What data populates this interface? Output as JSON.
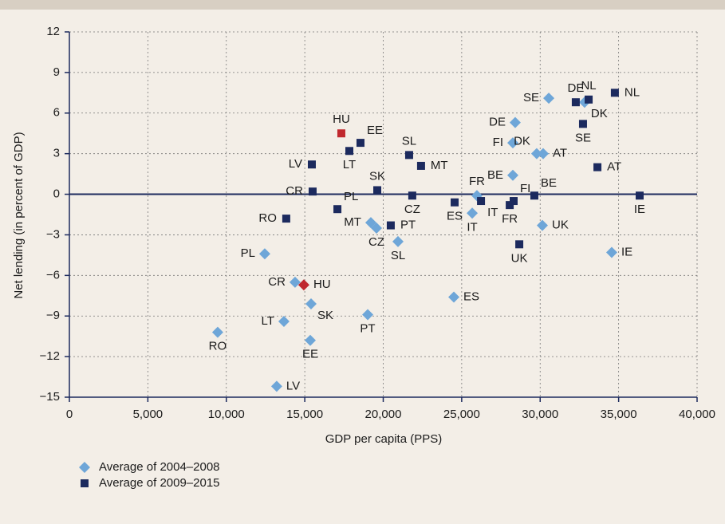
{
  "chart_data": {
    "type": "scatter",
    "xlabel": "GDP per capita (PPS)",
    "ylabel": "Net lending (in percent of GDP)",
    "xlim": [
      0,
      40000
    ],
    "xticks": [
      0,
      {
        "value": 5000,
        "label": "5,000"
      },
      {
        "value": 10000,
        "label": "10,000"
      },
      {
        "value": 15000,
        "label": "15,000"
      },
      {
        "value": 20000,
        "label": "20,000"
      },
      {
        "value": 25000,
        "label": "25,000"
      },
      {
        "value": 30000,
        "label": "30,000"
      },
      {
        "value": 35000,
        "label": "35,000"
      },
      {
        "value": 40000,
        "label": "40,000"
      }
    ],
    "ylim": [
      -15,
      12
    ],
    "yticks": [
      {
        "value": -15,
        "label": "−15"
      },
      {
        "value": -12,
        "label": "−12"
      },
      {
        "value": -9,
        "label": "−9"
      },
      {
        "value": -6,
        "label": "−6"
      },
      {
        "value": -3,
        "label": "−3"
      },
      0,
      3,
      6,
      9,
      12
    ],
    "grid": true,
    "legend": "bottom-left",
    "highlight_label": "HU",
    "highlight_color": "#c0282e",
    "series": [
      {
        "name": "Average of 2004–2008",
        "color": "#6ea6d8",
        "marker": "diamond",
        "labels": [
          "SE",
          "DK",
          "DE",
          "FI",
          "DK",
          "AT",
          "BE",
          "FR",
          "IT",
          "UK",
          "IE",
          "ES",
          "MT",
          "CZ",
          "SL",
          "PL",
          "CR",
          "HU",
          "SK",
          "PT",
          "LT",
          "EE",
          "RO",
          "LV"
        ],
        "x": [
          30550,
          32830,
          28410,
          28260,
          29780,
          30190,
          28260,
          25970,
          25670,
          30140,
          34560,
          24500,
          19210,
          19570,
          20940,
          12450,
          14380,
          14940,
          15400,
          19010,
          13670,
          15350,
          9450,
          13210
        ],
        "values": [
          7.1,
          6.8,
          5.3,
          3.8,
          3.0,
          3.0,
          1.4,
          -0.1,
          -1.4,
          -2.3,
          -4.3,
          -7.6,
          -2.1,
          -2.5,
          -3.5,
          -4.4,
          -6.5,
          -6.7,
          -8.1,
          -8.9,
          -9.4,
          -10.8,
          -10.2,
          -14.2
        ]
      },
      {
        "name": "Average of 2009–2015",
        "color": "#1c2a5e",
        "marker": "square",
        "labels": [
          "NL",
          "NL",
          "DE",
          "SE",
          "AT",
          "BE",
          "FI",
          "FR",
          "IE",
          "UK",
          "IT",
          "ES",
          "CZ",
          "SL",
          "MT",
          "SK",
          "PT",
          "PL",
          "HU",
          "EE",
          "LT",
          "LV",
          "CR",
          "RO"
        ],
        "x": [
          33090,
          34760,
          32270,
          32730,
          33650,
          29630,
          28310,
          28060,
          36340,
          28670,
          26230,
          24550,
          21850,
          21650,
          22410,
          19620,
          20480,
          17080,
          17330,
          18550,
          17840,
          15450,
          15500,
          13820
        ],
        "values": [
          7.0,
          7.5,
          6.8,
          5.2,
          2.0,
          -0.1,
          -0.5,
          -0.8,
          -0.1,
          -3.7,
          -0.5,
          -0.6,
          -0.1,
          2.9,
          2.1,
          0.3,
          -2.3,
          -1.1,
          4.5,
          3.8,
          3.2,
          2.2,
          0.2,
          -1.8
        ]
      }
    ]
  }
}
